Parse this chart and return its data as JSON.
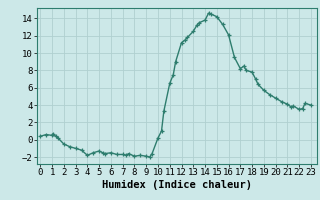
{
  "x": [
    0,
    0.5,
    1,
    1.1,
    1.3,
    1.5,
    2,
    2.5,
    3,
    3.5,
    4,
    4.5,
    5,
    5.3,
    5.5,
    6,
    6.5,
    7,
    7.3,
    7.5,
    8,
    8.5,
    9,
    9.3,
    9.5,
    10,
    10.3,
    10.5,
    11,
    11.3,
    11.5,
    12,
    12.3,
    12.5,
    13,
    13.3,
    13.5,
    14,
    14.3,
    14.5,
    15,
    15.5,
    16,
    16.5,
    17,
    17.3,
    17.5,
    18,
    18.3,
    18.5,
    19,
    19.5,
    20,
    20.5,
    21,
    21.3,
    21.5,
    22,
    22.3,
    22.5,
    23
  ],
  "y": [
    0.4,
    0.6,
    0.5,
    0.7,
    0.4,
    0.2,
    -0.5,
    -0.8,
    -1.0,
    -1.2,
    -1.8,
    -1.5,
    -1.3,
    -1.5,
    -1.6,
    -1.5,
    -1.7,
    -1.7,
    -1.8,
    -1.6,
    -1.9,
    -1.8,
    -1.9,
    -2.0,
    -1.6,
    0.2,
    1.0,
    3.3,
    6.5,
    7.5,
    9.0,
    11.2,
    11.5,
    11.8,
    12.5,
    13.2,
    13.5,
    13.8,
    14.6,
    14.5,
    14.2,
    13.3,
    12.1,
    9.5,
    8.2,
    8.5,
    8.0,
    7.8,
    7.0,
    6.4,
    5.7,
    5.2,
    4.8,
    4.4,
    4.1,
    3.8,
    3.9,
    3.5,
    3.6,
    4.2,
    4.0
  ],
  "line_color": "#2e7d6e",
  "marker": "+",
  "marker_size": 3,
  "marker_every": 2,
  "bg_color": "#cce8e8",
  "grid_color": "#b0d0d0",
  "xlabel": "Humidex (Indice chaleur)",
  "xlim": [
    -0.3,
    23.5
  ],
  "ylim": [
    -2.8,
    15.2
  ],
  "yticks": [
    -2,
    0,
    2,
    4,
    6,
    8,
    10,
    12,
    14
  ],
  "xticks": [
    0,
    1,
    2,
    3,
    4,
    5,
    6,
    7,
    8,
    9,
    10,
    11,
    12,
    13,
    14,
    15,
    16,
    17,
    18,
    19,
    20,
    21,
    22,
    23
  ],
  "xlabel_fontsize": 7.5,
  "tick_fontsize": 6.5,
  "linewidth": 1.0
}
